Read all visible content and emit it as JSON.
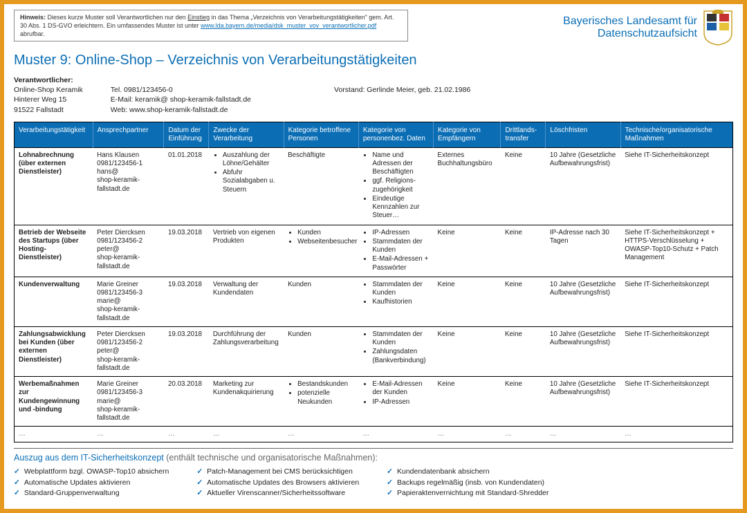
{
  "note": {
    "prefix": "Hinweis:",
    "text1": " Dieses kurze Muster soll Verantwortlichen nur den ",
    "underline": "Einstieg",
    "text2": " in das Thema „Verzeichnis von Verarbeitungstätigkeiten\" gem. Art. 30 Abs. 1 DS-GVO erleichtern. Ein umfassendes Muster ist unter ",
    "link": "www.lda.bayern.de/media/dsk_muster_vov_verantwortlicher.pdf",
    "text3": " abrufbar."
  },
  "agency": {
    "line1": "Bayerisches Landesamt für",
    "line2": "Datenschutzaufsicht"
  },
  "title": "Muster 9: Online-Shop – Verzeichnis von Verarbeitungstätigkeiten",
  "info": {
    "label": "Verantwortlicher:",
    "col1": [
      "Online-Shop Keramik",
      "Hinterer Weg 15",
      "91522 Fallstadt"
    ],
    "col2": [
      "Tel. 0981/123456-0",
      "E-Mail: keramik@ shop-keramik-fallstadt.de",
      "Web: www.shop-keramik-fallstadt.de"
    ],
    "col3": [
      "Vorstand: Gerlinde Meier, geb. 21.02.1986"
    ]
  },
  "columns": [
    "Verarbeitungstätigkeit",
    "Ansprechpartner",
    "Datum der Einführung",
    "Zwecke der Verarbeitung",
    "Kategorie betroffene Personen",
    "Kategorie von personenbez. Daten",
    "Kategorie von Empfängern",
    "Drittlands-transfer",
    "Löschfristen",
    "Technische/organisatorische Maßnahmen"
  ],
  "col_widths": [
    "105",
    "95",
    "60",
    "100",
    "100",
    "100",
    "90",
    "60",
    "100",
    "150"
  ],
  "rows": [
    {
      "activity": "Lohnabrechnung (über externen Dienstleister)",
      "contact": "Hans Klausen\n0981/123456-1\nhans@\nshop-keramik-fallstadt.de",
      "date": "01.01.2018",
      "purpose_list": [
        "Auszahlung der Löhne/Gehälter",
        "Abfuhr Sozialabgaben u. Steuern"
      ],
      "persons": "Beschäftigte",
      "data_list": [
        "Name und Adressen der Beschäftigten",
        "ggf. Religions-zugehörigkeit",
        "Eindeutige Kennzahlen zur Steuer…"
      ],
      "recipients": "Externes Buchhaltungsbüro",
      "transfer": "Keine",
      "deletion": "10 Jahre (Gesetzliche Aufbewahrungsfrist)",
      "measures": "Siehe IT-Sicherheitskonzept"
    },
    {
      "activity": "Betrieb der Webseite des Startups (über Hosting-Dienstleister)",
      "contact": "Peter Diercksen\n0981/123456-2\npeter@\nshop-keramik-fallstadt.de",
      "date": "19.03.2018",
      "purpose": "Vertrieb von eigenen Produkten",
      "persons_list": [
        "Kunden",
        "Webseitenbesucher"
      ],
      "data_list": [
        "IP-Adressen",
        "Stammdaten der Kunden",
        "E-Mail-Adressen + Passwörter"
      ],
      "recipients": "Keine",
      "transfer": "Keine",
      "deletion": "IP-Adresse nach 30 Tagen",
      "measures": "Siehe IT-Sicherheitskonzept + HTTPS-Verschlüsselung + OWASP-Top10-Schutz + Patch Management"
    },
    {
      "activity": "Kundenverwaltung",
      "contact": "Marie Greiner\n0981/123456-3\nmarie@\nshop-keramik-fallstadt.de",
      "date": "19.03.2018",
      "purpose": "Verwaltung der Kundendaten",
      "persons": "Kunden",
      "data_list": [
        "Stammdaten der Kunden",
        "Kaufhistorien"
      ],
      "recipients": "Keine",
      "transfer": "Keine",
      "deletion": "10 Jahre (Gesetzliche Aufbewahrungsfrist)",
      "measures": "Siehe IT-Sicherheitskonzept"
    },
    {
      "activity": "Zahlungsabwicklung bei Kunden (über externen Dienstleister)",
      "contact": "Peter Diercksen\n0981/123456-2\npeter@\nshop-keramik-fallstadt.de",
      "date": "19.03.2018",
      "purpose": "Durchführung der Zahlungsverarbeitung",
      "persons": "Kunden",
      "data_list": [
        "Stammdaten der Kunden",
        "Zahlungsdaten (Bankverbindung)"
      ],
      "recipients": "Keine",
      "transfer": "Keine",
      "deletion": "10 Jahre (Gesetzliche Aufbewahrungsfrist)",
      "measures": "Siehe IT-Sicherheitskonzept"
    },
    {
      "activity": "Werbemaßnahmen zur Kundengewinnung und -bindung",
      "contact": "Marie Greiner\n0981/123456-3\nmarie@\nshop-keramik-fallstadt.de",
      "date": "20.03.2018",
      "purpose": "Marketing zur Kundenakquirierung",
      "persons_list": [
        "Bestandskunden",
        "potenzielle Neukunden"
      ],
      "data_list": [
        "E-Mail-Adressen der Kunden",
        "IP-Adressen"
      ],
      "recipients": "Keine",
      "transfer": "Keine",
      "deletion": "10 Jahre (Gesetzliche Aufbewahrungsfrist)",
      "measures": "Siehe IT-Sicherheitskonzept"
    }
  ],
  "footer": {
    "title_blue": "Auszug aus dem IT-Sicherheitskonzept",
    "title_gray": " (enthält technische und organisatorische Maßnahmen):",
    "col1": [
      "Webplattform bzgl. OWASP-Top10 absichern",
      "Automatische Updates aktivieren",
      "Standard-Gruppenverwaltung"
    ],
    "col2": [
      "Patch-Management bei CMS berücksichtigen",
      "Automatische Updates des Browsers aktivieren",
      "Aktueller Virenscanner/Sicherheitssoftware"
    ],
    "col3": [
      "Kundendatenbank absichern",
      "Backups regelmäßig (insb. von Kundendaten)",
      "Papieraktenvernichtung mit Standard-Shredder"
    ]
  },
  "colors": {
    "border": "#e59a1f",
    "primary": "#0b6eb5"
  }
}
